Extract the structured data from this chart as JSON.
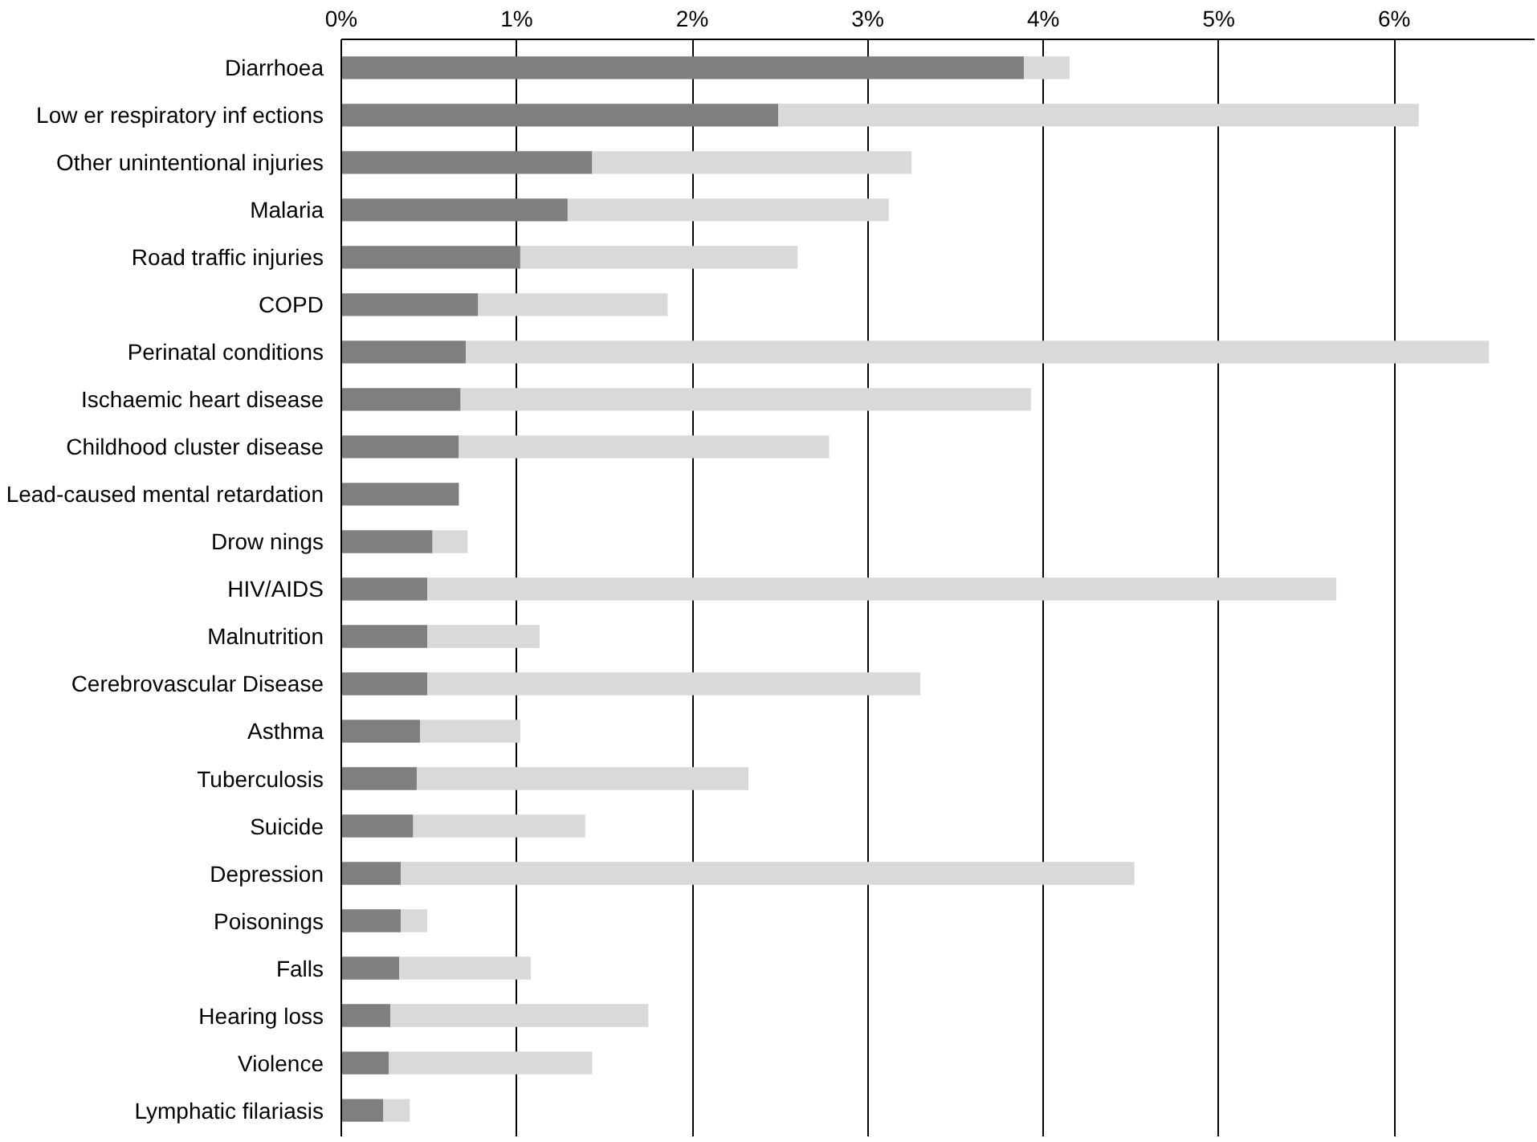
{
  "chart_data": {
    "type": "bar",
    "orientation": "horizontal",
    "stacked": true,
    "categories": [
      "Diarrhoea",
      "Low er respiratory inf ections",
      "Other unintentional injuries",
      "Malaria",
      "Road traffic injuries",
      "COPD",
      "Perinatal conditions",
      "Ischaemic heart disease",
      "Childhood cluster disease",
      "Lead-caused mental retardation",
      "Drow nings",
      "HIV/AIDS",
      "Malnutrition",
      "Cerebrovascular Disease",
      "Asthma",
      "Tuberculosis",
      "Suicide",
      "Depression",
      "Poisonings",
      "Falls",
      "Hearing loss",
      "Violence",
      "Lymphatic filariasis"
    ],
    "series": [
      {
        "color": "#7f7f7f",
        "values": [
          3.89,
          2.49,
          1.43,
          1.29,
          1.02,
          0.78,
          0.71,
          0.68,
          0.67,
          0.67,
          0.52,
          0.49,
          0.49,
          0.49,
          0.45,
          0.43,
          0.41,
          0.34,
          0.34,
          0.33,
          0.28,
          0.27,
          0.24
        ]
      },
      {
        "color": "#d9d9d9",
        "values": [
          0.26,
          3.65,
          1.82,
          1.83,
          1.58,
          1.08,
          5.83,
          3.25,
          2.11,
          0,
          0.2,
          5.18,
          0.64,
          2.81,
          0.57,
          1.89,
          0.98,
          4.18,
          0.15,
          0.75,
          1.47,
          1.16,
          0.15
        ]
      }
    ],
    "xlim": [
      0,
      6.8
    ],
    "xticks": [
      {
        "value": 0,
        "label": "0%"
      },
      {
        "value": 1,
        "label": "1%"
      },
      {
        "value": 2,
        "label": "2%"
      },
      {
        "value": 3,
        "label": "3%"
      },
      {
        "value": 4,
        "label": "4%"
      },
      {
        "value": 5,
        "label": "5%"
      },
      {
        "value": 6,
        "label": "6%"
      }
    ],
    "grid": "x"
  }
}
